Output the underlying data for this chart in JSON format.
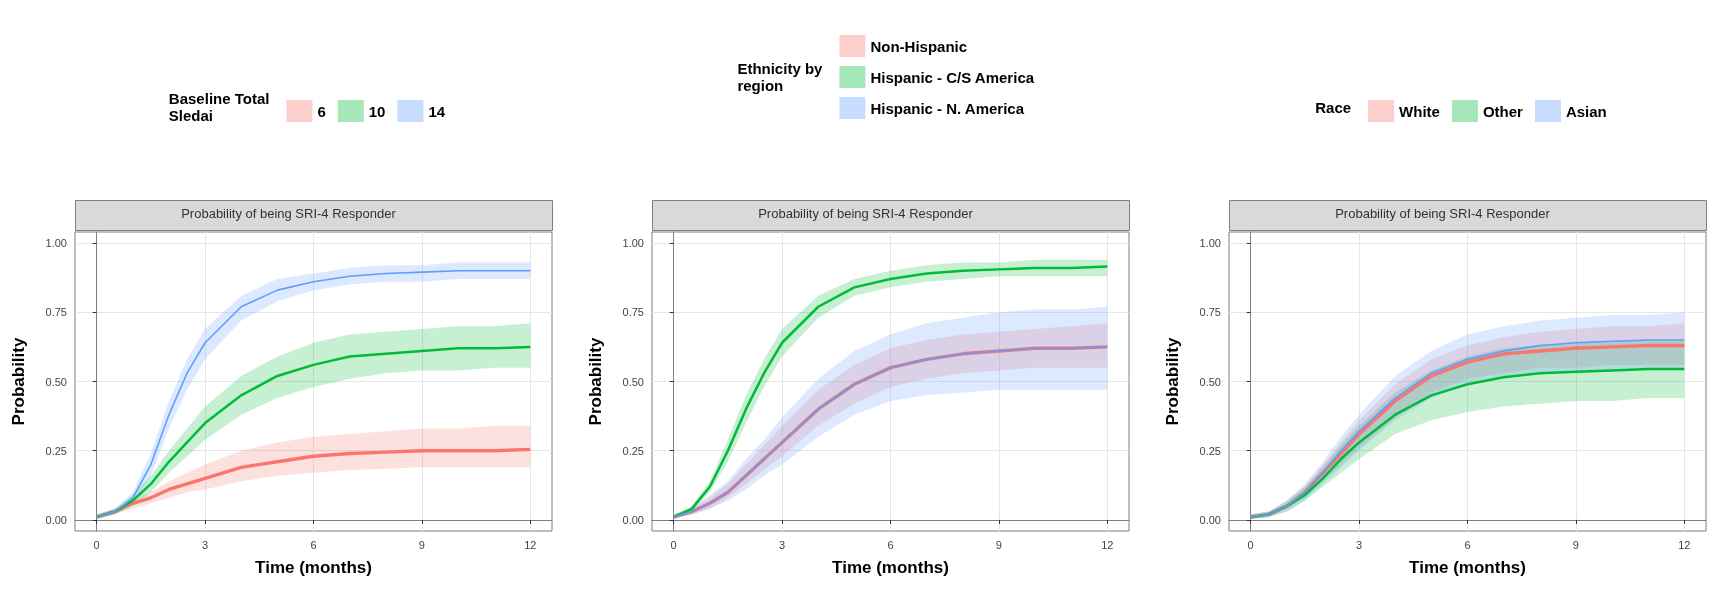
{
  "chart_data": [
    {
      "type": "line",
      "title": "Probability of being SRI-4 Responder",
      "xlabel": "Time (months)",
      "ylabel": "Probability",
      "legend_title": "Baseline Total Sledai",
      "legend": "top",
      "grid": true,
      "x": [
        0,
        0.5,
        1,
        1.5,
        2,
        2.5,
        3,
        4,
        5,
        6,
        7,
        8,
        9,
        10,
        11,
        12
      ],
      "xlim": [
        -0.6,
        12.6
      ],
      "xticks": [
        0,
        3,
        6,
        9,
        12
      ],
      "ylim": [
        -0.04,
        1.04
      ],
      "yticks": [
        {
          "value": 0,
          "label": "0.00"
        },
        {
          "value": 0.25,
          "label": "0.25"
        },
        {
          "value": 0.5,
          "label": "0.50"
        },
        {
          "value": 0.75,
          "label": "0.75"
        },
        {
          "value": 1,
          "label": "1.00"
        }
      ],
      "series": [
        {
          "name": "6",
          "color": "#f8766d",
          "values": [
            0.01,
            0.03,
            0.06,
            0.08,
            0.11,
            0.13,
            0.15,
            0.19,
            0.21,
            0.23,
            0.24,
            0.245,
            0.25,
            0.25,
            0.25,
            0.255
          ],
          "lower": [
            0.005,
            0.02,
            0.04,
            0.06,
            0.08,
            0.1,
            0.11,
            0.14,
            0.16,
            0.17,
            0.18,
            0.185,
            0.19,
            0.19,
            0.19,
            0.19
          ],
          "upper": [
            0.02,
            0.04,
            0.07,
            0.1,
            0.14,
            0.17,
            0.2,
            0.25,
            0.28,
            0.3,
            0.31,
            0.32,
            0.33,
            0.33,
            0.34,
            0.34
          ]
        },
        {
          "name": "10",
          "color": "#00ba38",
          "values": [
            0.01,
            0.03,
            0.07,
            0.13,
            0.21,
            0.28,
            0.35,
            0.45,
            0.52,
            0.56,
            0.59,
            0.6,
            0.61,
            0.62,
            0.62,
            0.625
          ],
          "lower": [
            0.005,
            0.02,
            0.05,
            0.1,
            0.17,
            0.23,
            0.29,
            0.38,
            0.44,
            0.48,
            0.51,
            0.53,
            0.54,
            0.54,
            0.55,
            0.55
          ],
          "upper": [
            0.02,
            0.04,
            0.09,
            0.16,
            0.25,
            0.33,
            0.41,
            0.52,
            0.59,
            0.64,
            0.67,
            0.68,
            0.69,
            0.7,
            0.7,
            0.71
          ]
        },
        {
          "name": "14",
          "color": "#619cff",
          "values": [
            0.01,
            0.03,
            0.08,
            0.2,
            0.38,
            0.53,
            0.64,
            0.77,
            0.83,
            0.86,
            0.88,
            0.89,
            0.895,
            0.9,
            0.9,
            0.9
          ],
          "lower": [
            0.005,
            0.02,
            0.06,
            0.16,
            0.33,
            0.47,
            0.58,
            0.72,
            0.79,
            0.83,
            0.85,
            0.86,
            0.86,
            0.87,
            0.87,
            0.87
          ],
          "upper": [
            0.02,
            0.04,
            0.1,
            0.24,
            0.43,
            0.58,
            0.69,
            0.81,
            0.87,
            0.89,
            0.91,
            0.92,
            0.92,
            0.93,
            0.93,
            0.93
          ]
        }
      ]
    },
    {
      "type": "line",
      "title": "Probability of being SRI-4 Responder",
      "xlabel": "Time (months)",
      "ylabel": "Probability",
      "legend_title": "Ethnicity by region",
      "legend": "top",
      "grid": true,
      "x": [
        0,
        0.5,
        1,
        1.5,
        2,
        2.5,
        3,
        4,
        5,
        6,
        7,
        8,
        9,
        10,
        11,
        12
      ],
      "xlim": [
        -0.6,
        12.6
      ],
      "xticks": [
        0,
        3,
        6,
        9,
        12
      ],
      "ylim": [
        -0.04,
        1.04
      ],
      "yticks": [
        {
          "value": 0,
          "label": "0.00"
        },
        {
          "value": 0.25,
          "label": "0.25"
        },
        {
          "value": 0.5,
          "label": "0.50"
        },
        {
          "value": 0.75,
          "label": "0.75"
        },
        {
          "value": 1,
          "label": "1.00"
        }
      ],
      "series": [
        {
          "name": "Non-Hispanic",
          "color": "#f8766d",
          "values": [
            0.01,
            0.03,
            0.06,
            0.1,
            0.16,
            0.22,
            0.28,
            0.4,
            0.49,
            0.55,
            0.58,
            0.6,
            0.61,
            0.62,
            0.62,
            0.625
          ],
          "lower": [
            0.005,
            0.02,
            0.04,
            0.08,
            0.13,
            0.18,
            0.23,
            0.34,
            0.42,
            0.48,
            0.51,
            0.53,
            0.54,
            0.55,
            0.55,
            0.55
          ],
          "upper": [
            0.02,
            0.04,
            0.08,
            0.13,
            0.2,
            0.27,
            0.34,
            0.47,
            0.56,
            0.62,
            0.65,
            0.67,
            0.68,
            0.69,
            0.7,
            0.71
          ]
        },
        {
          "name": "Hispanic - C/S America",
          "color": "#00ba38",
          "values": [
            0.01,
            0.04,
            0.12,
            0.25,
            0.4,
            0.53,
            0.64,
            0.77,
            0.84,
            0.87,
            0.89,
            0.9,
            0.905,
            0.91,
            0.91,
            0.915
          ],
          "lower": [
            0.005,
            0.03,
            0.1,
            0.21,
            0.35,
            0.48,
            0.59,
            0.73,
            0.81,
            0.84,
            0.86,
            0.87,
            0.88,
            0.88,
            0.88,
            0.88
          ],
          "upper": [
            0.02,
            0.05,
            0.14,
            0.29,
            0.45,
            0.58,
            0.69,
            0.81,
            0.87,
            0.9,
            0.92,
            0.93,
            0.93,
            0.94,
            0.94,
            0.94
          ]
        },
        {
          "name": "Hispanic - N. America",
          "color": "#619cff",
          "values": [
            0.01,
            0.03,
            0.06,
            0.1,
            0.16,
            0.22,
            0.28,
            0.4,
            0.49,
            0.55,
            0.58,
            0.6,
            0.61,
            0.62,
            0.62,
            0.625
          ],
          "lower": [
            0.005,
            0.02,
            0.04,
            0.07,
            0.11,
            0.16,
            0.2,
            0.3,
            0.38,
            0.43,
            0.45,
            0.46,
            0.47,
            0.47,
            0.47,
            0.47
          ],
          "upper": [
            0.02,
            0.04,
            0.09,
            0.14,
            0.22,
            0.29,
            0.37,
            0.51,
            0.61,
            0.67,
            0.71,
            0.73,
            0.75,
            0.76,
            0.76,
            0.77
          ]
        }
      ]
    },
    {
      "type": "line",
      "title": "Probability of being SRI-4 Responder",
      "xlabel": "Time (months)",
      "ylabel": "Probability",
      "legend_title": "Race",
      "legend": "top",
      "grid": true,
      "x": [
        0,
        0.5,
        1,
        1.5,
        2,
        2.5,
        3,
        4,
        5,
        6,
        7,
        8,
        9,
        10,
        11,
        12
      ],
      "xlim": [
        -0.6,
        12.6
      ],
      "xticks": [
        0,
        3,
        6,
        9,
        12
      ],
      "ylim": [
        -0.04,
        1.04
      ],
      "yticks": [
        {
          "value": 0,
          "label": "0.00"
        },
        {
          "value": 0.25,
          "label": "0.25"
        },
        {
          "value": 0.5,
          "label": "0.50"
        },
        {
          "value": 0.75,
          "label": "0.75"
        },
        {
          "value": 1,
          "label": "1.00"
        }
      ],
      "series": [
        {
          "name": "White",
          "color": "#f8766d",
          "values": [
            0.01,
            0.02,
            0.05,
            0.1,
            0.17,
            0.24,
            0.31,
            0.43,
            0.52,
            0.57,
            0.6,
            0.61,
            0.62,
            0.625,
            0.63,
            0.63
          ],
          "lower": [
            0.005,
            0.015,
            0.04,
            0.08,
            0.14,
            0.2,
            0.26,
            0.37,
            0.46,
            0.51,
            0.53,
            0.55,
            0.55,
            0.56,
            0.56,
            0.56
          ],
          "upper": [
            0.02,
            0.03,
            0.06,
            0.12,
            0.2,
            0.28,
            0.36,
            0.49,
            0.58,
            0.63,
            0.66,
            0.68,
            0.69,
            0.7,
            0.7,
            0.71
          ]
        },
        {
          "name": "Other",
          "color": "#00ba38",
          "values": [
            0.01,
            0.02,
            0.05,
            0.09,
            0.15,
            0.22,
            0.28,
            0.38,
            0.45,
            0.49,
            0.515,
            0.53,
            0.535,
            0.54,
            0.545,
            0.545
          ],
          "lower": [
            0.005,
            0.01,
            0.03,
            0.07,
            0.12,
            0.17,
            0.22,
            0.31,
            0.36,
            0.39,
            0.41,
            0.42,
            0.43,
            0.43,
            0.44,
            0.44
          ],
          "upper": [
            0.02,
            0.03,
            0.07,
            0.12,
            0.19,
            0.27,
            0.34,
            0.46,
            0.54,
            0.59,
            0.62,
            0.63,
            0.64,
            0.64,
            0.65,
            0.65
          ]
        },
        {
          "name": "Asian",
          "color": "#619cff",
          "values": [
            0.01,
            0.02,
            0.05,
            0.1,
            0.17,
            0.25,
            0.32,
            0.44,
            0.53,
            0.58,
            0.61,
            0.63,
            0.64,
            0.645,
            0.65,
            0.65
          ],
          "lower": [
            0.005,
            0.01,
            0.03,
            0.07,
            0.13,
            0.19,
            0.25,
            0.36,
            0.44,
            0.49,
            0.51,
            0.53,
            0.54,
            0.54,
            0.55,
            0.55
          ],
          "upper": [
            0.02,
            0.03,
            0.07,
            0.13,
            0.21,
            0.3,
            0.38,
            0.52,
            0.61,
            0.67,
            0.7,
            0.72,
            0.73,
            0.74,
            0.74,
            0.75
          ]
        }
      ]
    }
  ]
}
